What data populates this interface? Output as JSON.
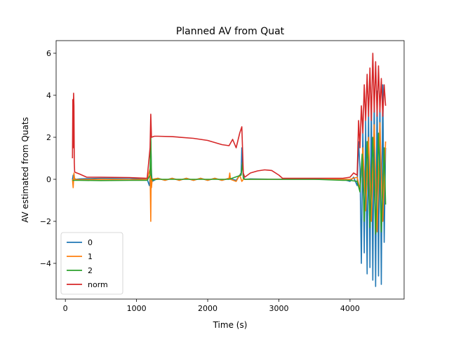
{
  "chart_data": {
    "type": "line",
    "title": "Planned AV from Quat",
    "xlabel": "Time (s)",
    "ylabel": "AV estimated from Quats",
    "xlim": [
      -130,
      4760
    ],
    "ylim": [
      -5.7,
      6.6
    ],
    "xticks": [
      0,
      1000,
      2000,
      3000,
      4000
    ],
    "yticks": [
      -4,
      -2,
      0,
      2,
      4,
      6
    ],
    "xtick_labels": [
      "0",
      "1000",
      "2000",
      "3000",
      "4000"
    ],
    "ytick_labels": [
      "−4",
      "−2",
      "0",
      "2",
      "4",
      "6"
    ],
    "grid": false,
    "legend_position": "lower-left",
    "series": [
      {
        "name": "0",
        "color": "#1f77b4",
        "x": [
          100,
          110,
          120,
          140,
          200,
          500,
          900,
          1150,
          1180,
          1190,
          1200,
          1210,
          1220,
          1300,
          1400,
          1500,
          1600,
          1700,
          1800,
          1900,
          2000,
          2100,
          2200,
          2300,
          2400,
          2470,
          2480,
          2500,
          2520,
          2600,
          3000,
          3500,
          3900,
          4000,
          4050,
          4100,
          4120,
          4140,
          4160,
          4180,
          4200,
          4220,
          4240,
          4260,
          4280,
          4300,
          4320,
          4340,
          4360,
          4380,
          4400,
          4420,
          4440,
          4460,
          4480,
          4500
        ],
        "y": [
          0.0,
          0.2,
          0.1,
          0.0,
          0.02,
          0.05,
          0.05,
          0.0,
          -0.3,
          0.1,
          1.8,
          0.3,
          -0.1,
          0.05,
          -0.05,
          0.05,
          -0.05,
          0.05,
          -0.05,
          0.05,
          -0.05,
          0.05,
          -0.05,
          0.05,
          -0.05,
          0.3,
          1.5,
          0.1,
          0.0,
          0.02,
          0.0,
          0.0,
          0.0,
          -0.1,
          0.1,
          -0.3,
          1.8,
          0.5,
          -4.0,
          2.5,
          -3.5,
          2.8,
          -4.5,
          3.5,
          -4.2,
          3.8,
          -4.8,
          4.0,
          -5.1,
          4.2,
          -4.6,
          3.9,
          -5.0,
          4.5,
          -3.0,
          1.5
        ]
      },
      {
        "name": "1",
        "color": "#ff7f0e",
        "x": [
          100,
          110,
          120,
          130,
          200,
          500,
          900,
          1150,
          1190,
          1200,
          1205,
          1210,
          1220,
          1300,
          1400,
          1500,
          1600,
          1700,
          1800,
          1900,
          2000,
          2100,
          2200,
          2300,
          2310,
          2320,
          2400,
          2450,
          2480,
          2500,
          2600,
          3000,
          3500,
          4000,
          4100,
          4140,
          4180,
          4220,
          4260,
          4300,
          4340,
          4380,
          4420,
          4460,
          4500
        ],
        "y": [
          0.0,
          -0.4,
          0.3,
          0.0,
          -0.02,
          0.0,
          -0.02,
          0.0,
          0.5,
          -2.0,
          0.2,
          -0.4,
          0.0,
          0.05,
          -0.05,
          0.05,
          -0.05,
          0.05,
          -0.05,
          0.05,
          -0.05,
          0.05,
          -0.05,
          0.05,
          0.3,
          0.0,
          -0.1,
          0.2,
          -0.1,
          0.0,
          0.0,
          0.0,
          0.0,
          0.0,
          0.1,
          -0.5,
          1.5,
          -1.5,
          2.0,
          -2.0,
          2.6,
          -2.5,
          2.7,
          -2.0,
          1.8
        ]
      },
      {
        "name": "2",
        "color": "#2ca02c",
        "x": [
          100,
          200,
          500,
          900,
          1150,
          1190,
          1200,
          1210,
          1220,
          1300,
          1800,
          2300,
          2470,
          2490,
          2500,
          2520,
          2600,
          3000,
          3500,
          3900,
          4000,
          4100,
          4140,
          4170,
          4200,
          4240,
          4280,
          4320,
          4360,
          4400,
          4440,
          4480,
          4500
        ],
        "y": [
          -0.05,
          -0.05,
          -0.06,
          -0.05,
          -0.05,
          0.2,
          2.2,
          0.1,
          -0.03,
          0.0,
          0.0,
          0.0,
          0.2,
          0.8,
          0.05,
          0.0,
          0.0,
          0.0,
          0.0,
          -0.05,
          -0.05,
          -0.1,
          -0.6,
          1.2,
          -2.0,
          1.8,
          -2.3,
          2.0,
          -2.6,
          2.2,
          -2.5,
          1.5,
          -1.2
        ]
      },
      {
        "name": "norm",
        "color": "#d62728",
        "x": [
          100,
          105,
          110,
          115,
          120,
          125,
          130,
          140,
          200,
          300,
          500,
          900,
          1150,
          1190,
          1200,
          1210,
          1250,
          1300,
          1500,
          1800,
          2000,
          2200,
          2300,
          2350,
          2400,
          2450,
          2480,
          2500,
          2520,
          2600,
          2700,
          2800,
          2900,
          3000,
          3050,
          3100,
          3500,
          3900,
          4000,
          4050,
          4100,
          4120,
          4140,
          4160,
          4180,
          4200,
          4220,
          4240,
          4260,
          4280,
          4300,
          4320,
          4340,
          4360,
          4380,
          4400,
          4420,
          4440,
          4460,
          4480,
          4500
        ],
        "y": [
          1.0,
          3.8,
          1.5,
          4.1,
          3.5,
          0.8,
          0.35,
          0.33,
          0.25,
          0.1,
          0.1,
          0.08,
          0.05,
          1.5,
          3.1,
          2.0,
          2.05,
          2.05,
          2.03,
          1.95,
          1.85,
          1.65,
          1.6,
          1.9,
          1.5,
          2.2,
          2.5,
          0.3,
          0.1,
          0.3,
          0.4,
          0.45,
          0.42,
          0.2,
          0.05,
          0.05,
          0.05,
          0.05,
          0.1,
          0.3,
          0.2,
          2.8,
          1.5,
          3.5,
          2.2,
          4.5,
          2.8,
          5.0,
          3.0,
          5.3,
          2.8,
          6.0,
          3.2,
          5.6,
          3.0,
          5.4,
          3.2,
          4.8,
          3.0,
          4.5,
          3.5
        ]
      }
    ]
  }
}
